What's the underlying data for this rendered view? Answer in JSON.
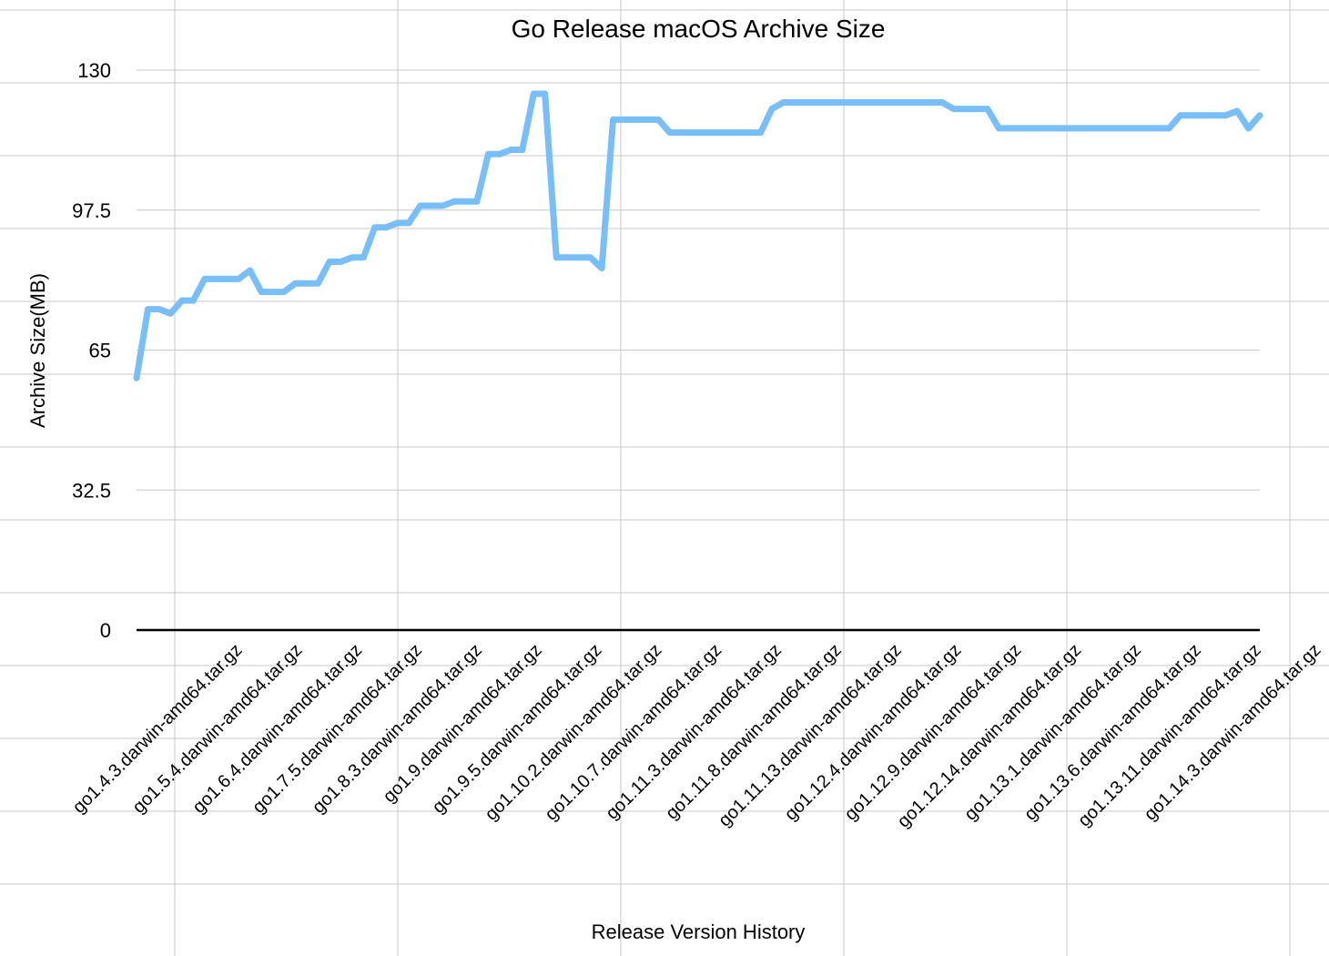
{
  "chart_data": {
    "type": "line",
    "title": "Go Release macOS Archive Size",
    "xlabel": "Release Version History",
    "ylabel": "Archive Size(MB)",
    "ylim": [
      0,
      130
    ],
    "yticks": [
      "0",
      "32.5",
      "65",
      "97.5",
      "130"
    ],
    "grid": true,
    "line_color": "#78BEF8",
    "category_labels": [
      "go1.4.3.darwin-amd64.tar.gz",
      "go1.5.4.darwin-amd64.tar.gz",
      "go1.6.4.darwin-amd64.tar.gz",
      "go1.7.5.darwin-amd64.tar.gz",
      "go1.8.3.darwin-amd64.tar.gz",
      "go1.9.darwin-amd64.tar.gz",
      "go1.9.5.darwin-amd64.tar.gz",
      "go1.10.2.darwin-amd64.tar.gz",
      "go1.10.7.darwin-amd64.tar.gz",
      "go1.11.3.darwin-amd64.tar.gz",
      "go1.11.8.darwin-amd64.tar.gz",
      "go1.11.13.darwin-amd64.tar.gz",
      "go1.12.4.darwin-amd64.tar.gz",
      "go1.12.9.darwin-amd64.tar.gz",
      "go1.12.14.darwin-amd64.tar.gz",
      "go1.13.1.darwin-amd64.tar.gz",
      "go1.13.6.darwin-amd64.tar.gz",
      "go1.13.11.darwin-amd64.tar.gz",
      "go1.14.3.darwin-amd64.tar.gz"
    ],
    "series": [
      {
        "values": [
          58.5,
          74.5,
          74.5,
          73.5,
          76.5,
          76.5,
          81.5,
          81.5,
          81.5,
          81.5,
          83.5,
          78.5,
          78.5,
          78.5,
          80.5,
          80.5,
          80.5,
          85.5,
          85.5,
          86.5,
          86.5,
          93.5,
          93.5,
          94.5,
          94.5,
          98.5,
          98.5,
          98.5,
          99.5,
          99.5,
          99.5,
          110.5,
          110.5,
          111.5,
          111.5,
          124.5,
          124.5,
          86.5,
          86.5,
          86.5,
          86.5,
          84.0,
          118.5,
          118.5,
          118.5,
          118.5,
          118.5,
          115.5,
          115.5,
          115.5,
          115.5,
          115.5,
          115.5,
          115.5,
          115.5,
          115.5,
          121.0,
          122.5,
          122.5,
          122.5,
          122.5,
          122.5,
          122.5,
          122.5,
          122.5,
          122.5,
          122.5,
          122.5,
          122.5,
          122.5,
          122.5,
          122.5,
          121.0,
          121.0,
          121.0,
          121.0,
          116.5,
          116.5,
          116.5,
          116.5,
          116.5,
          116.5,
          116.5,
          116.5,
          116.5,
          116.5,
          116.5,
          116.5,
          116.5,
          116.5,
          116.5,
          116.5,
          119.5,
          119.5,
          119.5,
          119.5,
          119.5,
          120.5,
          116.5,
          119.5
        ]
      }
    ]
  }
}
